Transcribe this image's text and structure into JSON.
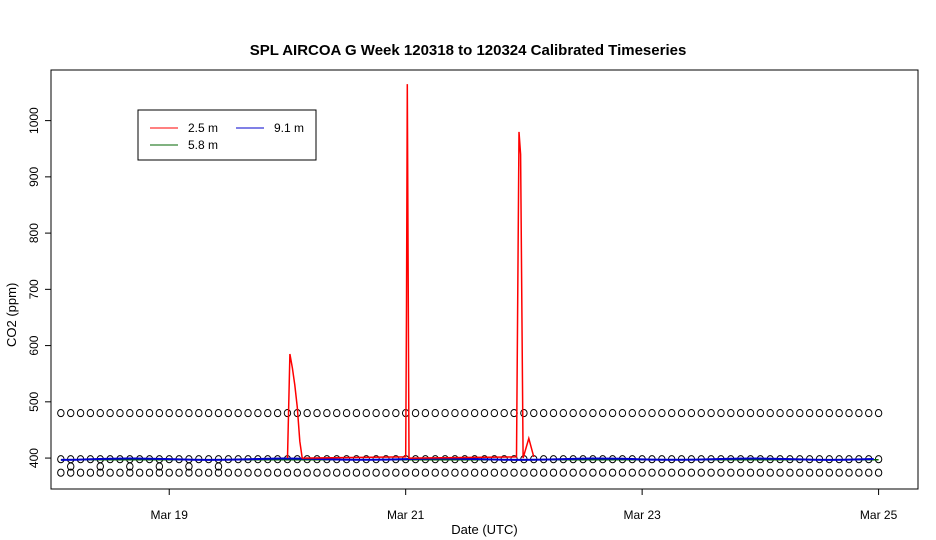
{
  "chart_data": {
    "type": "line",
    "title": "SPL AIRCOA G  Week 120318 to 120324  Calibrated Timeseries",
    "xlabel": "Date (UTC)",
    "ylabel": "CO2 (ppm)",
    "x_ticks": [
      "Mar 19",
      "Mar 21",
      "Mar 23",
      "Mar 25"
    ],
    "y_ticks": [
      400,
      500,
      600,
      700,
      800,
      900,
      1000
    ],
    "xlim": [
      "2012-03-18 00:00",
      "2012-03-25 08:00"
    ],
    "ylim": [
      345,
      1090
    ],
    "legend": {
      "placement": "top-left",
      "entries": [
        {
          "name": "2.5 m",
          "color": "#ff0000"
        },
        {
          "name": "9.1 m",
          "color": "#0000cc"
        },
        {
          "name": "5.8 m",
          "color": "#006400"
        }
      ]
    },
    "series": [
      {
        "name": "2.5 m",
        "color": "#ff0000",
        "points": [
          [
            "2012-03-20 00:00",
            400
          ],
          [
            "2012-03-20 00:30",
            585
          ],
          [
            "2012-03-20 01:00",
            560
          ],
          [
            "2012-03-20 01:30",
            530
          ],
          [
            "2012-03-20 02:00",
            490
          ],
          [
            "2012-03-20 02:30",
            430
          ],
          [
            "2012-03-20 03:00",
            400
          ],
          [
            "2012-03-21 00:00",
            402
          ],
          [
            "2012-03-21 00:10",
            670
          ],
          [
            "2012-03-21 00:20",
            1065
          ],
          [
            "2012-03-21 00:40",
            400
          ],
          [
            "2012-03-21 22:30",
            402
          ],
          [
            "2012-03-21 23:00",
            980
          ],
          [
            "2012-03-21 23:20",
            940
          ],
          [
            "2012-03-21 23:50",
            400
          ],
          [
            "2012-03-22 01:00",
            435
          ],
          [
            "2012-03-22 02:00",
            402
          ]
        ]
      },
      {
        "name": "9.1 m",
        "color": "#0000cc",
        "baseline": 398
      },
      {
        "name": "5.8 m",
        "color": "#006400",
        "baseline": 397
      },
      {
        "name": "calibration",
        "marker": "circle",
        "levels": [
          480,
          398,
          385,
          374
        ]
      }
    ]
  }
}
